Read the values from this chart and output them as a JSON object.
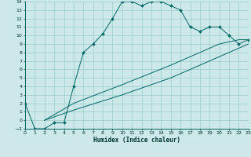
{
  "xlabel": "Humidex (Indice chaleur)",
  "background_color": "#cce8e8",
  "grid_color": "#99cccc",
  "line_color": "#006666",
  "xlim": [
    0,
    23
  ],
  "ylim": [
    -1,
    14
  ],
  "xticks": [
    0,
    1,
    2,
    3,
    4,
    5,
    6,
    7,
    8,
    9,
    10,
    11,
    12,
    13,
    14,
    15,
    16,
    17,
    18,
    19,
    20,
    21,
    22,
    23
  ],
  "yticks": [
    -1,
    0,
    1,
    2,
    3,
    4,
    5,
    6,
    7,
    8,
    9,
    10,
    11,
    12,
    13,
    14
  ],
  "series1_x": [
    0,
    1,
    2,
    3,
    4,
    5,
    6,
    7,
    8,
    9,
    10,
    11,
    12,
    13,
    14,
    15,
    16,
    17,
    18,
    19,
    20,
    21,
    22,
    23
  ],
  "series1_y": [
    2,
    -1,
    -1,
    -0.3,
    -0.3,
    4,
    8,
    9,
    10.2,
    12,
    14,
    14,
    13.5,
    14,
    14,
    13.5,
    13,
    11,
    10.5,
    11,
    11,
    10,
    9,
    9.5
  ],
  "series2_x": [
    2,
    5,
    10,
    15,
    20,
    22,
    23
  ],
  "series2_y": [
    0,
    2.0,
    4.2,
    6.5,
    9.0,
    9.5,
    9.5
  ],
  "series3_x": [
    2,
    5,
    10,
    15,
    20,
    22,
    23
  ],
  "series3_y": [
    0,
    1.2,
    3.0,
    5.0,
    7.5,
    8.5,
    9.0
  ]
}
